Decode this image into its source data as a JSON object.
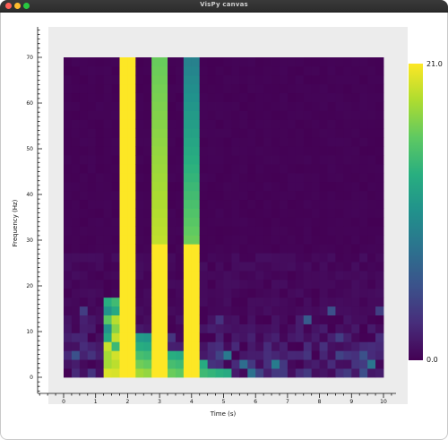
{
  "window": {
    "title": "VisPy canvas"
  },
  "chart_data": {
    "type": "heatmap",
    "xlabel": "Time (s)",
    "ylabel": "Frequency (Hz)",
    "xlim": [
      0,
      10
    ],
    "ylim": [
      0,
      70
    ],
    "x_ticks": [
      "0",
      "1",
      "2",
      "3",
      "4",
      "5",
      "6",
      "7",
      "8",
      "9",
      "10"
    ],
    "y_ticks": [
      "0",
      "10",
      "20",
      "30",
      "40",
      "50",
      "60",
      "70"
    ],
    "colorbar": {
      "min": 0.0,
      "max": 21.0,
      "min_label": "0.0",
      "max_label": "21.0",
      "colormap": "viridis"
    },
    "time_bins": 40,
    "freq_bins": 36,
    "bright_bands": [
      {
        "x_start": 1.8,
        "x_end": 2.2,
        "top_freq": 70,
        "value": 21
      },
      {
        "x_start": 2.8,
        "x_end": 3.2,
        "top_freq": 70,
        "value": 16
      },
      {
        "x_start": 3.8,
        "x_end": 4.2,
        "top_freq": 70,
        "value": 9
      }
    ]
  }
}
